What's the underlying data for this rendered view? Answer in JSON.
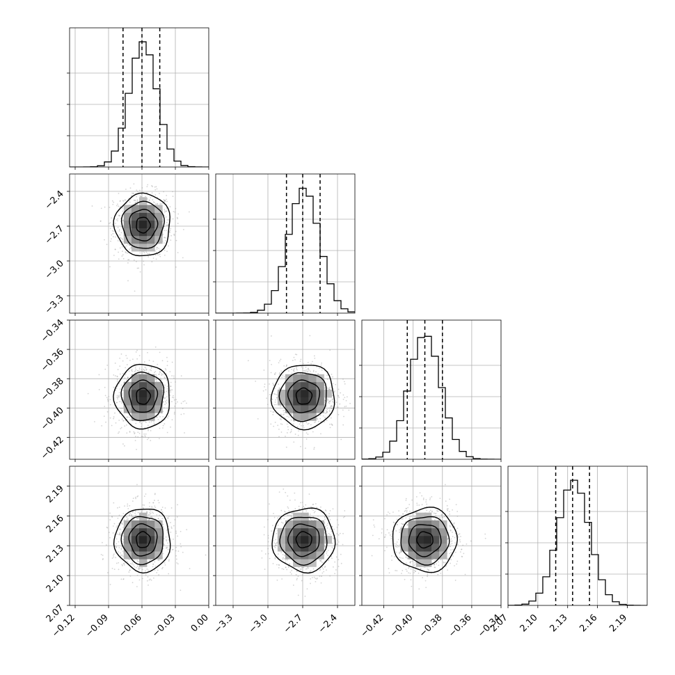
{
  "chart_data": {
    "type": "corner",
    "parameters": [
      {
        "range": [
          -0.125,
          0.0
        ],
        "ticks": [
          -0.12,
          -0.09,
          -0.06,
          -0.03,
          0.0
        ],
        "tick_labels": [
          "−0.12",
          "−0.09",
          "−0.06",
          "−0.03",
          "0.00"
        ],
        "quantiles": [
          -0.077,
          -0.06,
          -0.044
        ],
        "peak": -0.059,
        "sigma": 0.0125
      },
      {
        "range": [
          -3.45,
          -2.25
        ],
        "ticks": [
          -3.3,
          -3.0,
          -2.7,
          -2.4
        ],
        "tick_labels": [
          "−3.3",
          "−3.0",
          "−2.7",
          "−2.4"
        ],
        "quantiles": [
          -2.84,
          -2.7,
          -2.55
        ],
        "peak": -2.69,
        "sigma": 0.135
      },
      {
        "range": [
          -0.435,
          -0.34
        ],
        "ticks": [
          -0.42,
          -0.4,
          -0.38,
          -0.36,
          -0.34
        ],
        "tick_labels": [
          "−0.42",
          "−0.40",
          "−0.38",
          "−0.36",
          "−0.34"
        ],
        "quantiles": [
          -0.404,
          -0.392,
          -0.38
        ],
        "peak": -0.392,
        "sigma": 0.011
      },
      {
        "range": [
          2.07,
          2.21
        ],
        "ticks": [
          2.07,
          2.1,
          2.13,
          2.16,
          2.19
        ],
        "tick_labels": [
          "2.07",
          "2.10",
          "2.13",
          "2.16",
          "2.19"
        ],
        "quantiles": [
          2.118,
          2.135,
          2.152
        ],
        "peak": 2.136,
        "sigma": 0.016
      }
    ],
    "histogram_bins": 20,
    "contour_levels_sigma": [
      0.5,
      1.0,
      1.5,
      2.0
    ],
    "grid": true,
    "colors": {
      "line": "#000000",
      "scatter": "#9e9e9e",
      "grid": "#b0b0b0",
      "density_max": "#000000"
    }
  }
}
